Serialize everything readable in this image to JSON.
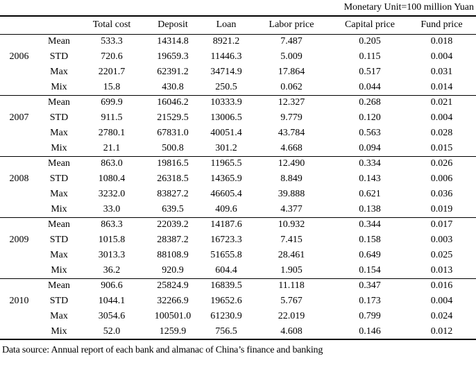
{
  "meta": {
    "monetary_unit": "Monetary Unit=100 million Yuan",
    "data_source": "Data source: Annual report of each bank and almanac of China’s finance and banking"
  },
  "table": {
    "columns": [
      "",
      "",
      "Total cost",
      "Deposit",
      "Loan",
      "Labor price",
      "Capital price",
      "Fund price"
    ],
    "stat_labels": [
      "Mean",
      "STD",
      "Max",
      "Mix"
    ],
    "groups": [
      {
        "year": "2006",
        "rows": [
          [
            "533.3",
            "14314.8",
            "8921.2",
            "7.487",
            "0.205",
            "0.018"
          ],
          [
            "720.6",
            "19659.3",
            "11446.3",
            "5.009",
            "0.115",
            "0.004"
          ],
          [
            "2201.7",
            "62391.2",
            "34714.9",
            "17.864",
            "0.517",
            "0.031"
          ],
          [
            "15.8",
            "430.8",
            "250.5",
            "0.062",
            "0.044",
            "0.014"
          ]
        ]
      },
      {
        "year": "2007",
        "rows": [
          [
            "699.9",
            "16046.2",
            "10333.9",
            "12.327",
            "0.268",
            "0.021"
          ],
          [
            "911.5",
            "21529.5",
            "13006.5",
            "9.779",
            "0.120",
            "0.004"
          ],
          [
            "2780.1",
            "67831.0",
            "40051.4",
            "43.784",
            "0.563",
            "0.028"
          ],
          [
            "21.1",
            "500.8",
            "301.2",
            "4.668",
            "0.094",
            "0.015"
          ]
        ]
      },
      {
        "year": "2008",
        "rows": [
          [
            "863.0",
            "19816.5",
            "11965.5",
            "12.490",
            "0.334",
            "0.026"
          ],
          [
            "1080.4",
            "26318.5",
            "14365.9",
            "8.849",
            "0.143",
            "0.006"
          ],
          [
            "3232.0",
            "83827.2",
            "46605.4",
            "39.888",
            "0.621",
            "0.036"
          ],
          [
            "33.0",
            "639.5",
            "409.6",
            "4.377",
            "0.138",
            "0.019"
          ]
        ]
      },
      {
        "year": "2009",
        "rows": [
          [
            "863.3",
            "22039.2",
            "14187.6",
            "10.932",
            "0.344",
            "0.017"
          ],
          [
            "1015.8",
            "28387.2",
            "16723.3",
            "7.415",
            "0.158",
            "0.003"
          ],
          [
            "3013.3",
            "88108.9",
            "51655.8",
            "28.461",
            "0.649",
            "0.025"
          ],
          [
            "36.2",
            "920.9",
            "604.4",
            "1.905",
            "0.154",
            "0.013"
          ]
        ]
      },
      {
        "year": "2010",
        "rows": [
          [
            "906.6",
            "25824.9",
            "16839.5",
            "11.118",
            "0.347",
            "0.016"
          ],
          [
            "1044.1",
            "32266.9",
            "19652.6",
            "5.767",
            "0.173",
            "0.004"
          ],
          [
            "3054.6",
            "100501.0",
            "61230.9",
            "22.019",
            "0.799",
            "0.024"
          ],
          [
            "52.0",
            "1259.9",
            "756.5",
            "4.608",
            "0.146",
            "0.012"
          ]
        ]
      }
    ]
  }
}
